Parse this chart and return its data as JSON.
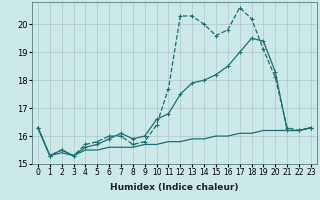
{
  "xlabel": "Humidex (Indice chaleur)",
  "background_color": "#cce8e8",
  "grid_color": "#b0c8c8",
  "line_color": "#1a7070",
  "xlim": [
    -0.5,
    23.5
  ],
  "ylim": [
    15.0,
    20.8
  ],
  "yticks": [
    15,
    16,
    17,
    18,
    19,
    20
  ],
  "xticks": [
    0,
    1,
    2,
    3,
    4,
    5,
    6,
    7,
    8,
    9,
    10,
    11,
    12,
    13,
    14,
    15,
    16,
    17,
    18,
    19,
    20,
    21,
    22,
    23
  ],
  "series1_x": [
    0,
    1,
    2,
    3,
    4,
    5,
    6,
    7,
    8,
    9,
    10,
    11,
    12,
    13,
    14,
    15,
    16,
    17,
    18,
    19,
    20,
    21,
    22,
    23
  ],
  "series1_y": [
    16.3,
    15.3,
    15.5,
    15.3,
    15.7,
    15.8,
    16.0,
    16.0,
    15.7,
    15.8,
    16.4,
    17.7,
    20.3,
    20.3,
    20.0,
    19.6,
    19.8,
    20.6,
    20.2,
    19.1,
    18.1,
    16.3,
    16.2,
    16.3
  ],
  "series2_x": [
    0,
    1,
    2,
    3,
    4,
    5,
    6,
    7,
    8,
    9,
    10,
    11,
    12,
    13,
    14,
    15,
    16,
    17,
    18,
    19,
    20,
    21,
    22,
    23
  ],
  "series2_y": [
    16.3,
    15.3,
    15.5,
    15.3,
    15.6,
    15.7,
    15.9,
    16.1,
    15.9,
    16.0,
    16.6,
    16.8,
    17.5,
    17.9,
    18.0,
    18.2,
    18.5,
    19.0,
    19.5,
    19.4,
    18.3,
    16.2,
    16.2,
    16.3
  ],
  "series3_x": [
    0,
    1,
    2,
    3,
    4,
    5,
    6,
    7,
    8,
    9,
    10,
    11,
    12,
    13,
    14,
    15,
    16,
    17,
    18,
    19,
    20,
    21,
    22,
    23
  ],
  "series3_y": [
    16.3,
    15.3,
    15.4,
    15.3,
    15.5,
    15.5,
    15.6,
    15.6,
    15.6,
    15.7,
    15.7,
    15.8,
    15.8,
    15.9,
    15.9,
    16.0,
    16.0,
    16.1,
    16.1,
    16.2,
    16.2,
    16.2,
    16.2,
    16.3
  ]
}
